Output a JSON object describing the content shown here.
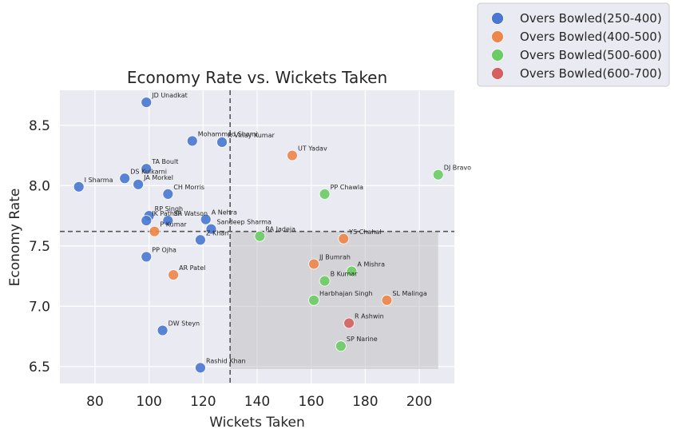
{
  "chart_data": {
    "type": "scatter",
    "title": "Economy Rate vs. Wickets Taken",
    "xlabel": "Wickets Taken",
    "ylabel": "Economy Rate",
    "xlim": [
      67,
      213
    ],
    "ylim": [
      6.36,
      8.79
    ],
    "xticks": [
      80,
      100,
      120,
      140,
      160,
      180,
      200
    ],
    "yticks": [
      6.5,
      7.0,
      7.5,
      8.0,
      8.5
    ],
    "ytick_labels": [
      "6.5",
      "7.0",
      "7.5",
      "8.0",
      "8.5"
    ],
    "grid": true,
    "legend_position": "outside top-right",
    "reference_lines": {
      "x": 130,
      "y": 7.62
    },
    "highlight_region": {
      "x": [
        130,
        207
      ],
      "y": [
        6.48,
        7.62
      ]
    },
    "groups": [
      {
        "name": "Overs Bowled(250-400)",
        "color": "#4878d0"
      },
      {
        "name": "Overs Bowled(400-500)",
        "color": "#ee854a"
      },
      {
        "name": "Overs Bowled(500-600)",
        "color": "#6acc64"
      },
      {
        "name": "Overs Bowled(600-700)",
        "color": "#d65f5f"
      }
    ],
    "points": [
      {
        "label": "JD Unadkat",
        "x": 99,
        "y": 8.69,
        "group": 0
      },
      {
        "label": "Mohammed Shami",
        "x": 116,
        "y": 8.37,
        "group": 0
      },
      {
        "label": "R Vinay Kumar",
        "x": 127,
        "y": 8.36,
        "group": 0
      },
      {
        "label": "UT Yadav",
        "x": 153,
        "y": 8.25,
        "group": 1
      },
      {
        "label": "TA Boult",
        "x": 99,
        "y": 8.14,
        "group": 0
      },
      {
        "label": "DS Kulkarni",
        "x": 91,
        "y": 8.06,
        "group": 0
      },
      {
        "label": "JA Morkel",
        "x": 96,
        "y": 8.01,
        "group": 0
      },
      {
        "label": "I Sharma",
        "x": 74,
        "y": 7.99,
        "group": 0
      },
      {
        "label": "CH Morris",
        "x": 107,
        "y": 7.93,
        "group": 0
      },
      {
        "label": "PP Chawla",
        "x": 165,
        "y": 7.93,
        "group": 2
      },
      {
        "label": "DJ Bravo",
        "x": 207,
        "y": 8.09,
        "group": 2
      },
      {
        "label": "RP Singh",
        "x": 100,
        "y": 7.75,
        "group": 0
      },
      {
        "label": "IK Pathan",
        "x": 99,
        "y": 7.71,
        "group": 0
      },
      {
        "label": "SR Watson",
        "x": 107,
        "y": 7.71,
        "group": 0
      },
      {
        "label": "A Nehra",
        "x": 121,
        "y": 7.72,
        "group": 0
      },
      {
        "label": "Sandeep Sharma",
        "x": 123,
        "y": 7.64,
        "group": 0
      },
      {
        "label": "P Kumar",
        "x": 102,
        "y": 7.62,
        "group": 1
      },
      {
        "label": "Z Khan",
        "x": 119,
        "y": 7.55,
        "group": 0
      },
      {
        "label": "RA Jadeja",
        "x": 141,
        "y": 7.58,
        "group": 2
      },
      {
        "label": "YS Chahal",
        "x": 172,
        "y": 7.56,
        "group": 1
      },
      {
        "label": "PP Ojha",
        "x": 99,
        "y": 7.41,
        "group": 0
      },
      {
        "label": "JJ Bumrah",
        "x": 161,
        "y": 7.35,
        "group": 1
      },
      {
        "label": "A Mishra",
        "x": 175,
        "y": 7.29,
        "group": 2
      },
      {
        "label": "AR Patel",
        "x": 109,
        "y": 7.26,
        "group": 1
      },
      {
        "label": "B Kumar",
        "x": 165,
        "y": 7.21,
        "group": 2
      },
      {
        "label": "Harbhajan Singh",
        "x": 161,
        "y": 7.05,
        "group": 2
      },
      {
        "label": "SL Malinga",
        "x": 188,
        "y": 7.05,
        "group": 1
      },
      {
        "label": "R Ashwin",
        "x": 174,
        "y": 6.86,
        "group": 3
      },
      {
        "label": "DW Steyn",
        "x": 105,
        "y": 6.8,
        "group": 0
      },
      {
        "label": "SP Narine",
        "x": 171,
        "y": 6.67,
        "group": 2
      },
      {
        "label": "Rashid Khan",
        "x": 119,
        "y": 6.49,
        "group": 0
      }
    ]
  }
}
